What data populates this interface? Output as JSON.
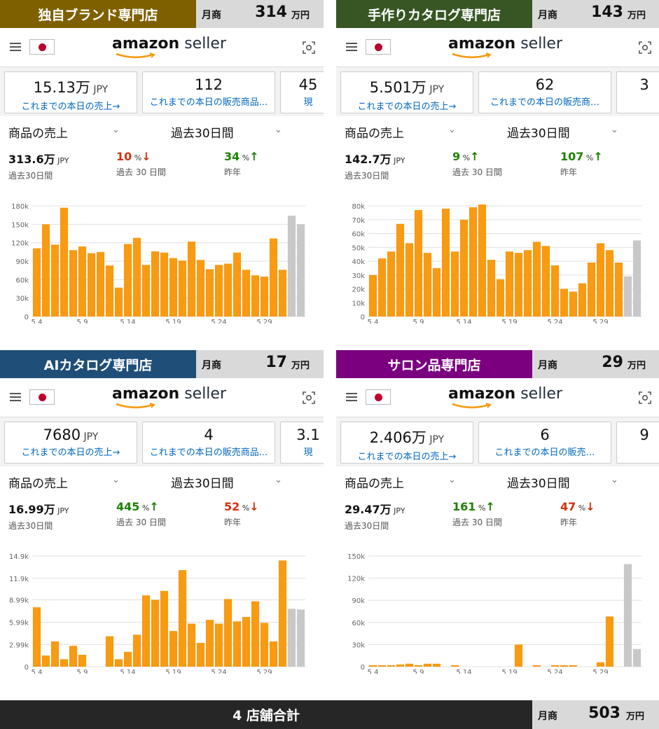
{
  "colors": {
    "bar": "#f89a12",
    "bar_future": "#c8c8c8",
    "grid": "#e0e0e0",
    "link": "#0066c0"
  },
  "logo": {
    "a": "amazon",
    "b": " seller"
  },
  "panels": [
    {
      "store": "独自ブランド専門店",
      "store_color": "#7f6000",
      "monthly_label": "月商",
      "monthly_value": "314",
      "monthly_unit": "万円",
      "cards": [
        {
          "value": "15.13万",
          "unit": " JPY",
          "label": "これまでの本日の売上→"
        },
        {
          "value": "112",
          "unit": "",
          "label": "これまでの本日の販売商品..."
        },
        {
          "value": "45",
          "unit": "",
          "label": "現"
        }
      ],
      "selector_metric": "商品の売上",
      "selector_period": "過去30日間",
      "kpis": [
        {
          "value": "313.6万",
          "unit": " JPY",
          "label": "過去30日間",
          "tone": "black",
          "arrow": ""
        },
        {
          "value": "10",
          "unit": " %",
          "label": "過去 30 日間",
          "tone": "red",
          "arrow": "↓"
        },
        {
          "value": "34",
          "unit": " %",
          "label": "昨年",
          "tone": "green",
          "arrow": "↑"
        }
      ],
      "chart_data": {
        "type": "bar",
        "ylim": [
          0,
          180000
        ],
        "yticks": [
          0,
          30000,
          60000,
          90000,
          120000,
          150000,
          180000
        ],
        "ytick_labels": [
          "0",
          "30k",
          "60k",
          "90k",
          "120k",
          "150k",
          "180k"
        ],
        "x_labels": [
          {
            "i": 0,
            "text": "5 4"
          },
          {
            "i": 5,
            "text": "5 9"
          },
          {
            "i": 10,
            "text": "5 14"
          },
          {
            "i": 15,
            "text": "5 19"
          },
          {
            "i": 20,
            "text": "5 24"
          },
          {
            "i": 25,
            "text": "5 29"
          }
        ],
        "values": [
          111000,
          150000,
          117000,
          177000,
          108000,
          114000,
          103000,
          105000,
          83000,
          47000,
          118000,
          128000,
          84000,
          106000,
          104000,
          95000,
          91000,
          122000,
          92000,
          77000,
          84000,
          86000,
          104000,
          76000,
          67000,
          65000,
          127000,
          76000
        ],
        "future_values": [
          164000,
          150000
        ]
      }
    },
    {
      "store": "手作りカタログ専門店",
      "store_color": "#375623",
      "monthly_label": "月商",
      "monthly_value": "143",
      "monthly_unit": "万円",
      "cards": [
        {
          "value": "5.501万",
          "unit": " JPY",
          "label": "これまでの本日の売上→"
        },
        {
          "value": "62",
          "unit": "",
          "label": "これまでの本日の販売商…"
        },
        {
          "value": "3",
          "unit": "",
          "label": ""
        }
      ],
      "selector_metric": "商品の売上",
      "selector_period": "過去30日間",
      "kpis": [
        {
          "value": "142.7万",
          "unit": " JPY",
          "label": "過去30日間",
          "tone": "black",
          "arrow": ""
        },
        {
          "value": "9",
          "unit": " %",
          "label": "過去 30 日間",
          "tone": "green",
          "arrow": "↑"
        },
        {
          "value": "107",
          "unit": " %",
          "label": "昨年",
          "tone": "green",
          "arrow": "↑"
        }
      ],
      "chart_data": {
        "type": "bar",
        "ylim": [
          0,
          80000
        ],
        "yticks": [
          0,
          10000,
          20000,
          30000,
          40000,
          50000,
          60000,
          70000,
          80000
        ],
        "ytick_labels": [
          "0",
          "10k",
          "20k",
          "30k",
          "40k",
          "50k",
          "60k",
          "70k",
          "80k"
        ],
        "x_labels": [
          {
            "i": 0,
            "text": "5 4"
          },
          {
            "i": 5,
            "text": "5 9"
          },
          {
            "i": 10,
            "text": "5 14"
          },
          {
            "i": 15,
            "text": "5 19"
          },
          {
            "i": 20,
            "text": "5 24"
          },
          {
            "i": 25,
            "text": "5 29"
          }
        ],
        "values": [
          30000,
          42000,
          47000,
          67000,
          53000,
          77000,
          46000,
          35000,
          78000,
          47000,
          70000,
          79000,
          81000,
          41000,
          27000,
          47000,
          46000,
          48000,
          54000,
          51000,
          37000,
          20000,
          18000,
          24000,
          39000,
          53000,
          48000,
          39000
        ],
        "future_values": [
          29000,
          55000
        ]
      }
    },
    {
      "store": "AIカタログ専門店",
      "store_color": "#1f4e79",
      "monthly_label": "月商",
      "monthly_value": "17",
      "monthly_unit": "万円",
      "cards": [
        {
          "value": "7680",
          "unit": " JPY",
          "label": "これまでの本日の売上→"
        },
        {
          "value": "4",
          "unit": "",
          "label": "これまでの本日の販売商品..."
        },
        {
          "value": "3.1",
          "unit": "",
          "label": "現"
        }
      ],
      "selector_metric": "商品の売上",
      "selector_period": "過去30日間",
      "kpis": [
        {
          "value": "16.99万",
          "unit": " JPY",
          "label": "過去30日間",
          "tone": "black",
          "arrow": ""
        },
        {
          "value": "445",
          "unit": " %",
          "label": "過去 30 日間",
          "tone": "green",
          "arrow": "↑"
        },
        {
          "value": "52",
          "unit": " %",
          "label": "昨年",
          "tone": "red",
          "arrow": "↓"
        }
      ],
      "chart_data": {
        "type": "bar",
        "ylim": [
          0,
          14900
        ],
        "yticks": [
          0,
          2990,
          5990,
          8990,
          11900,
          14900
        ],
        "ytick_labels": [
          "0",
          "2.99k",
          "5.99k",
          "8.99k",
          "11.9k",
          "14.9k"
        ],
        "x_labels": [
          {
            "i": 0,
            "text": "5 4"
          },
          {
            "i": 5,
            "text": "5 9"
          },
          {
            "i": 10,
            "text": "5 14"
          },
          {
            "i": 15,
            "text": "5 19"
          },
          {
            "i": 20,
            "text": "5 24"
          },
          {
            "i": 25,
            "text": "5 29"
          }
        ],
        "values": [
          8000,
          1500,
          3400,
          1000,
          2800,
          1600,
          0,
          0,
          4100,
          1000,
          2000,
          4300,
          9600,
          9000,
          10200,
          4800,
          13000,
          5800,
          3200,
          6300,
          5800,
          9100,
          6100,
          6700,
          8800,
          5900,
          3400,
          14300
        ],
        "future_values": [
          7800,
          7700
        ]
      }
    },
    {
      "store": "サロン品専門店",
      "store_color": "#7b0080",
      "monthly_label": "月商",
      "monthly_value": "29",
      "monthly_unit": "万円",
      "cards": [
        {
          "value": "2.406万",
          "unit": " JPY",
          "label": "これまでの本日の売上→"
        },
        {
          "value": "6",
          "unit": "",
          "label": "これまでの本日の販売…"
        },
        {
          "value": "9",
          "unit": "",
          "label": ""
        }
      ],
      "selector_metric": "商品の売上",
      "selector_period": "過去30日間",
      "kpis": [
        {
          "value": "29.47万",
          "unit": " JPY",
          "label": "過去30日間",
          "tone": "black",
          "arrow": ""
        },
        {
          "value": "161",
          "unit": " %",
          "label": "過去 30 日間",
          "tone": "green",
          "arrow": "↑"
        },
        {
          "value": "47",
          "unit": " %",
          "label": "昨年",
          "tone": "red",
          "arrow": "↓"
        }
      ],
      "chart_data": {
        "type": "bar",
        "ylim": [
          0,
          150000
        ],
        "yticks": [
          0,
          30000,
          60000,
          90000,
          120000,
          150000
        ],
        "ytick_labels": [
          "0",
          "30k",
          "60k",
          "90k",
          "120k",
          "150k"
        ],
        "x_labels": [
          {
            "i": 0,
            "text": "5 4"
          },
          {
            "i": 5,
            "text": "5 9"
          },
          {
            "i": 10,
            "text": "5 14"
          },
          {
            "i": 15,
            "text": "5 19"
          },
          {
            "i": 20,
            "text": "5 24"
          },
          {
            "i": 25,
            "text": "5 29"
          }
        ],
        "values": [
          2000,
          2000,
          2000,
          3000,
          4000,
          2000,
          4000,
          4000,
          0,
          2000,
          0,
          0,
          0,
          0,
          0,
          0,
          30000,
          0,
          2000,
          0,
          2000,
          2000,
          2000,
          0,
          0,
          6000,
          68000,
          0
        ],
        "future_values": [
          139000,
          24000
        ]
      }
    }
  ],
  "footer": {
    "title": "4 店舗合計",
    "monthly_label": "月商",
    "monthly_value": "503",
    "monthly_unit": "万円"
  }
}
